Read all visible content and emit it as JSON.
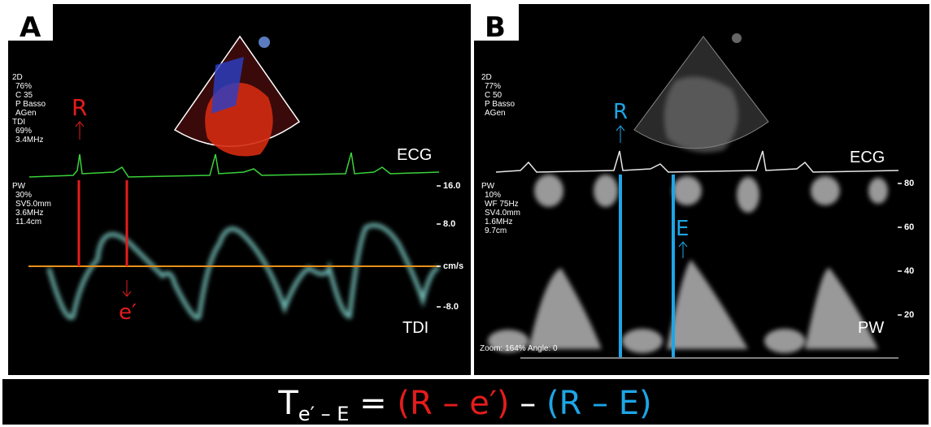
{
  "panels": [
    {
      "letter": "A",
      "settings_top": [
        "2D",
        "76%",
        "C 35",
        "P Basso",
        "AGen",
        "TDI",
        "69%",
        "3.4MHz"
      ],
      "settings_pw": [
        "PW",
        "30%",
        "SV5.0mm",
        "3.6MHz",
        "11.4cm"
      ],
      "marker_1": "R",
      "marker_2": "e′",
      "ecg_label": "ECG",
      "trace_label": "TDI",
      "scale": [
        "16.0",
        "8.0",
        "cm/s",
        "-8.0"
      ]
    },
    {
      "letter": "B",
      "settings_top": [
        "2D",
        "77%",
        "C 50",
        "P Basso",
        "AGen"
      ],
      "settings_pw": [
        "PW",
        "10%",
        "WF 75Hz",
        "SV4.0mm",
        "1.6MHz",
        "9.7cm"
      ],
      "marker_1": "R",
      "marker_2": "E",
      "ecg_label": "ECG",
      "trace_label": "PW",
      "scale": [
        "80",
        "60",
        "40",
        "20"
      ],
      "zoom": "Zoom: 164% Angle: 0"
    }
  ],
  "formula": {
    "t": "T",
    "sub": "e′ – E",
    "eq": " = ",
    "part1": "(R – e′)",
    "minus": " – ",
    "part2": "(R – E)"
  }
}
